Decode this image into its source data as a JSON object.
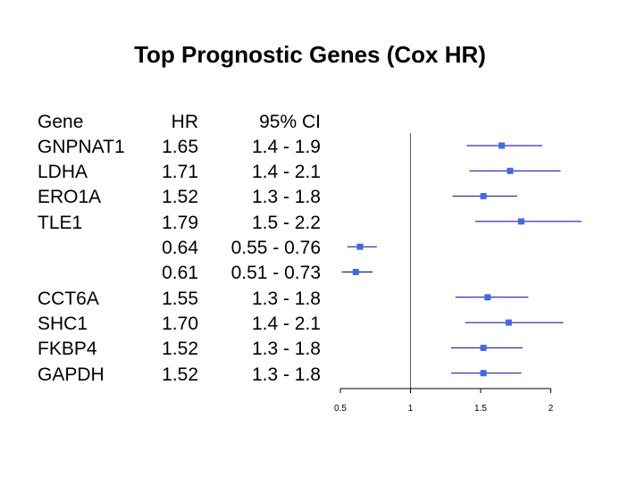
{
  "title": "Top Prognostic Genes (Cox HR)",
  "columns": {
    "gene": "Gene",
    "hr": "HR",
    "ci": "95% CI"
  },
  "rows": [
    {
      "gene": "GNPNAT1",
      "hr": "1.65",
      "ci": "1.4 - 1.9"
    },
    {
      "gene": "LDHA",
      "hr": "1.71",
      "ci": "1.4 - 2.1"
    },
    {
      "gene": "ERO1A",
      "hr": "1.52",
      "ci": "1.3 - 1.8"
    },
    {
      "gene": "TLE1",
      "hr": "1.79",
      "ci": "1.5 - 2.2"
    },
    {
      "gene": "",
      "hr": "0.64",
      "ci": "0.55 - 0.76"
    },
    {
      "gene": "",
      "hr": "0.61",
      "ci": "0.51 - 0.73"
    },
    {
      "gene": "CCT6A",
      "hr": "1.55",
      "ci": "1.3 - 1.8"
    },
    {
      "gene": "SHC1",
      "hr": "1.70",
      "ci": "1.4 - 2.1"
    },
    {
      "gene": "FKBP4",
      "hr": "1.52",
      "ci": "1.3 - 1.8"
    },
    {
      "gene": "GAPDH",
      "hr": "1.52",
      "ci": "1.3 - 1.8"
    }
  ],
  "chart_data": {
    "type": "scatter",
    "title": "Top Prognostic Genes (Cox HR)",
    "xlabel": "",
    "ylabel": "",
    "xlim": [
      0.5,
      2.2
    ],
    "xticks": [
      0.5,
      1,
      1.5,
      2
    ],
    "xtick_labels": [
      "0.5",
      "1",
      "1.5",
      "2"
    ],
    "reference_line": 1,
    "grid": false,
    "marker_color": "#4169E1",
    "ci_color": "#00008B",
    "points": [
      {
        "hr": 1.65,
        "lower": 1.4,
        "upper": 1.94
      },
      {
        "hr": 1.71,
        "lower": 1.42,
        "upper": 2.07
      },
      {
        "hr": 1.52,
        "lower": 1.3,
        "upper": 1.76
      },
      {
        "hr": 1.79,
        "lower": 1.46,
        "upper": 2.22
      },
      {
        "hr": 0.64,
        "lower": 0.55,
        "upper": 0.76
      },
      {
        "hr": 0.61,
        "lower": 0.51,
        "upper": 0.73
      },
      {
        "hr": 1.55,
        "lower": 1.32,
        "upper": 1.84
      },
      {
        "hr": 1.7,
        "lower": 1.39,
        "upper": 2.09
      },
      {
        "hr": 1.52,
        "lower": 1.29,
        "upper": 1.8
      },
      {
        "hr": 1.52,
        "lower": 1.29,
        "upper": 1.79
      }
    ]
  }
}
